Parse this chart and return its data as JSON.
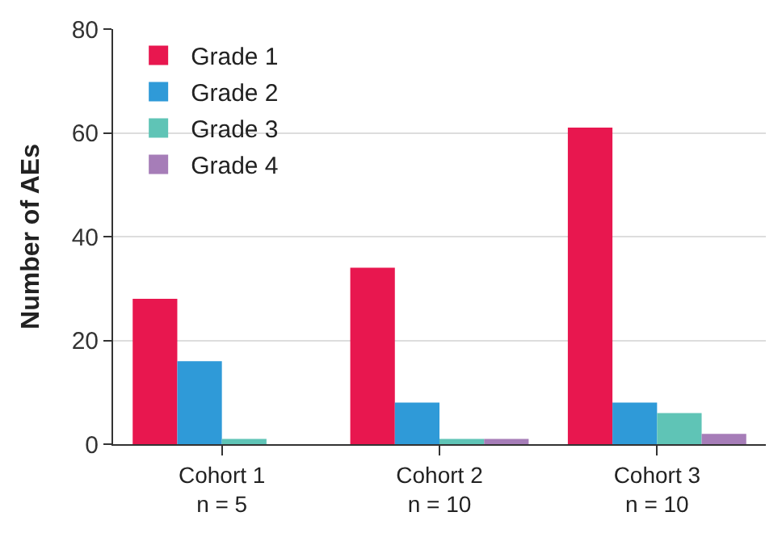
{
  "chart_data": {
    "type": "bar",
    "ylabel": "Number of AEs",
    "categories": [
      "Cohort 1\nn = 5",
      "Cohort 2\nn = 10",
      "Cohort 3\nn = 10"
    ],
    "series": [
      {
        "name": "Grade 1",
        "color": "#e8174f",
        "values": [
          28,
          34,
          61
        ]
      },
      {
        "name": "Grade 2",
        "color": "#2f9ad8",
        "values": [
          16,
          8,
          8
        ]
      },
      {
        "name": "Grade 3",
        "color": "#5fc4b6",
        "values": [
          1,
          1,
          6
        ]
      },
      {
        "name": "Grade 4",
        "color": "#a67db8",
        "values": [
          0,
          1,
          2
        ]
      }
    ],
    "ylim": [
      0,
      80
    ],
    "yticks": [
      0,
      20,
      40,
      60,
      80
    ],
    "grid": "y",
    "legend": "top left"
  }
}
